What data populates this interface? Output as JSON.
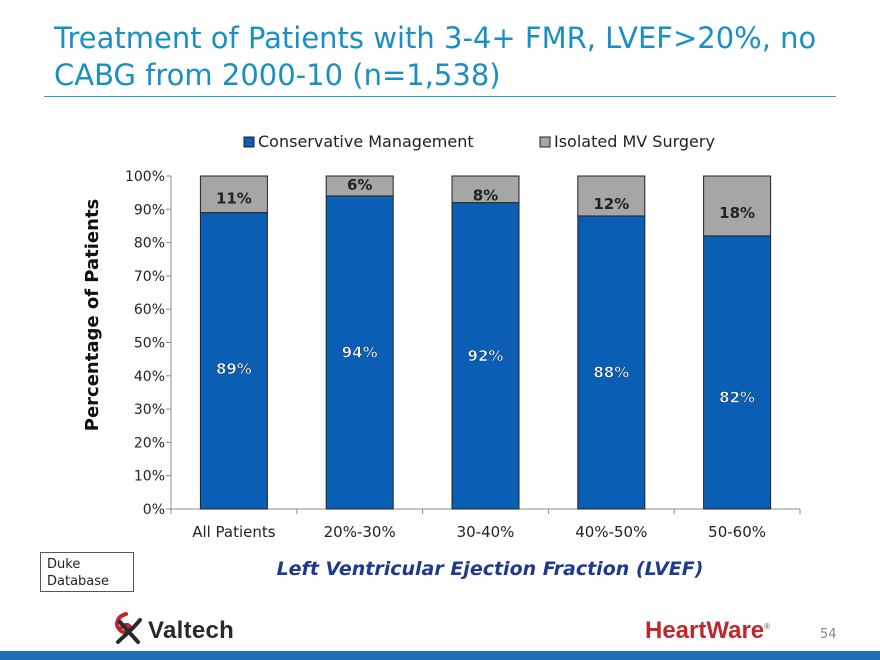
{
  "slide": {
    "title": "Treatment of Patients with 3-4+ FMR, LVEF>20%, no CABG from 2000-10 (n=1,538)",
    "source_note": [
      "Duke",
      "Database"
    ],
    "page_number": "54",
    "logos": {
      "left": "Valtech",
      "right": "HeartWare",
      "right_mark": "®"
    }
  },
  "colors": {
    "title": "#1a8fc4",
    "rule": "#2b9ad0",
    "conservative": "#0a5fb4",
    "surgery": "#a6a6a6",
    "axis_title": "#1f3a8a",
    "bottom_bar": "#1f6fb7",
    "heartware_red": "#c0272d"
  },
  "chart_data": {
    "type": "bar",
    "stacked": true,
    "categories": [
      "All Patients",
      "20%-30%",
      "30-40%",
      "40%-50%",
      "50-60%"
    ],
    "series": [
      {
        "name": "Conservative Management",
        "values": [
          89,
          94,
          92,
          88,
          82
        ],
        "labels": [
          "89%",
          "94%",
          "92%",
          "88%",
          "82%"
        ],
        "color": "#0a5fb4"
      },
      {
        "name": "Isolated MV Surgery",
        "values": [
          11,
          6,
          8,
          12,
          18
        ],
        "labels": [
          "11%",
          "6%",
          "8%",
          "12%",
          "18%"
        ],
        "color": "#a6a6a6"
      }
    ],
    "xlabel": "Left Ventricular Ejection Fraction (LVEF)",
    "ylabel": "Percentage of Patients",
    "ylim": [
      0,
      100
    ],
    "yticks": [
      "0%",
      "10%",
      "20%",
      "30%",
      "40%",
      "50%",
      "60%",
      "70%",
      "80%",
      "90%",
      "100%"
    ],
    "legend_position": "top",
    "grid": false
  }
}
